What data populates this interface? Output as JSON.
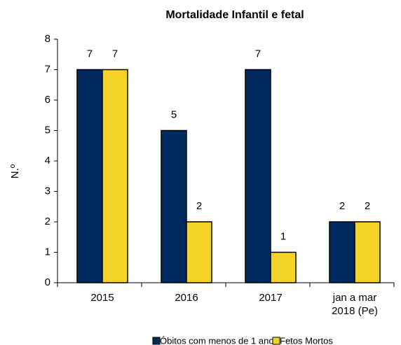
{
  "chart_data": {
    "type": "bar",
    "title": "Mortalidade Infantil e fetal",
    "y_label": "N.º",
    "categories": [
      "2015",
      "2016",
      "2017",
      "jan a mar 2018 (Pe)"
    ],
    "series": [
      {
        "name": "Óbitos com menos de 1 ano",
        "color": "#002b5f",
        "values": [
          7,
          5,
          7,
          2
        ]
      },
      {
        "name": "Fetos Mortos",
        "color": "#f5d327",
        "values": [
          7,
          2,
          1,
          2
        ]
      }
    ],
    "ylim": [
      0,
      8
    ],
    "yticks": [
      0,
      1,
      2,
      3,
      4,
      5,
      6,
      7,
      8
    ],
    "legend": "bottom"
  }
}
